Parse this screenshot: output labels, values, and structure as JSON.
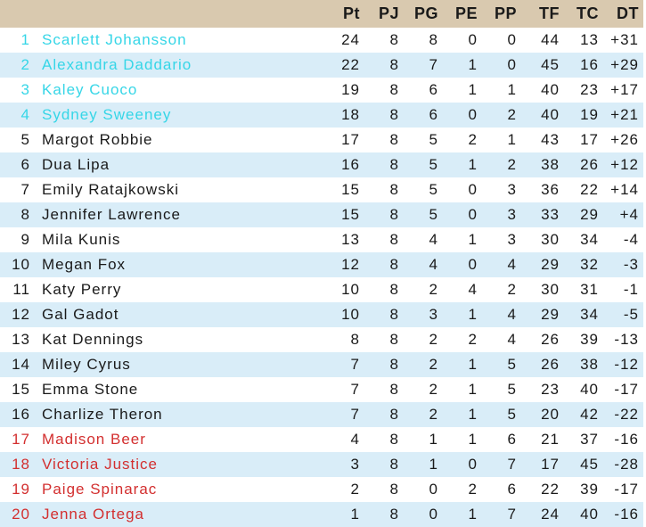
{
  "table": {
    "columns": [
      "Pt",
      "PJ",
      "PG",
      "PE",
      "PP",
      "TF",
      "TC",
      "DT"
    ],
    "rows": [
      {
        "rank": "1",
        "name": "Scarlett Johansson",
        "stats": [
          "24",
          "8",
          "8",
          "0",
          "0",
          "44",
          "13",
          "+31"
        ],
        "zone": "top"
      },
      {
        "rank": "2",
        "name": "Alexandra Daddario",
        "stats": [
          "22",
          "8",
          "7",
          "1",
          "0",
          "45",
          "16",
          "+29"
        ],
        "zone": "top"
      },
      {
        "rank": "3",
        "name": "Kaley Cuoco",
        "stats": [
          "19",
          "8",
          "6",
          "1",
          "1",
          "40",
          "23",
          "+17"
        ],
        "zone": "top"
      },
      {
        "rank": "4",
        "name": "Sydney Sweeney",
        "stats": [
          "18",
          "8",
          "6",
          "0",
          "2",
          "40",
          "19",
          "+21"
        ],
        "zone": "top"
      },
      {
        "rank": "5",
        "name": "Margot Robbie",
        "stats": [
          "17",
          "8",
          "5",
          "2",
          "1",
          "43",
          "17",
          "+26"
        ],
        "zone": "mid"
      },
      {
        "rank": "6",
        "name": "Dua Lipa",
        "stats": [
          "16",
          "8",
          "5",
          "1",
          "2",
          "38",
          "26",
          "+12"
        ],
        "zone": "mid"
      },
      {
        "rank": "7",
        "name": "Emily Ratajkowski",
        "stats": [
          "15",
          "8",
          "5",
          "0",
          "3",
          "36",
          "22",
          "+14"
        ],
        "zone": "mid"
      },
      {
        "rank": "8",
        "name": "Jennifer Lawrence",
        "stats": [
          "15",
          "8",
          "5",
          "0",
          "3",
          "33",
          "29",
          "+4"
        ],
        "zone": "mid"
      },
      {
        "rank": "9",
        "name": "Mila Kunis",
        "stats": [
          "13",
          "8",
          "4",
          "1",
          "3",
          "30",
          "34",
          "-4"
        ],
        "zone": "mid"
      },
      {
        "rank": "10",
        "name": "Megan Fox",
        "stats": [
          "12",
          "8",
          "4",
          "0",
          "4",
          "29",
          "32",
          "-3"
        ],
        "zone": "mid"
      },
      {
        "rank": "11",
        "name": "Katy Perry",
        "stats": [
          "10",
          "8",
          "2",
          "4",
          "2",
          "30",
          "31",
          "-1"
        ],
        "zone": "mid"
      },
      {
        "rank": "12",
        "name": "Gal Gadot",
        "stats": [
          "10",
          "8",
          "3",
          "1",
          "4",
          "29",
          "34",
          "-5"
        ],
        "zone": "mid"
      },
      {
        "rank": "13",
        "name": "Kat Dennings",
        "stats": [
          "8",
          "8",
          "2",
          "2",
          "4",
          "26",
          "39",
          "-13"
        ],
        "zone": "mid"
      },
      {
        "rank": "14",
        "name": "Miley Cyrus",
        "stats": [
          "7",
          "8",
          "2",
          "1",
          "5",
          "26",
          "38",
          "-12"
        ],
        "zone": "mid"
      },
      {
        "rank": "15",
        "name": "Emma Stone",
        "stats": [
          "7",
          "8",
          "2",
          "1",
          "5",
          "23",
          "40",
          "-17"
        ],
        "zone": "mid"
      },
      {
        "rank": "16",
        "name": "Charlize Theron",
        "stats": [
          "7",
          "8",
          "2",
          "1",
          "5",
          "20",
          "42",
          "-22"
        ],
        "zone": "mid"
      },
      {
        "rank": "17",
        "name": "Madison Beer",
        "stats": [
          "4",
          "8",
          "1",
          "1",
          "6",
          "21",
          "37",
          "-16"
        ],
        "zone": "bottom"
      },
      {
        "rank": "18",
        "name": "Victoria Justice",
        "stats": [
          "3",
          "8",
          "1",
          "0",
          "7",
          "17",
          "45",
          "-28"
        ],
        "zone": "bottom"
      },
      {
        "rank": "19",
        "name": "Paige Spinarac",
        "stats": [
          "2",
          "8",
          "0",
          "2",
          "6",
          "22",
          "39",
          "-17"
        ],
        "zone": "bottom"
      },
      {
        "rank": "20",
        "name": "Jenna Ortega",
        "stats": [
          "1",
          "8",
          "0",
          "1",
          "7",
          "24",
          "40",
          "-16"
        ],
        "zone": "bottom"
      }
    ]
  },
  "colors": {
    "header_background": "#d9c9af",
    "row_alt_background": "#d9edf8",
    "promotion_text": "#36d6e7",
    "relegation_text": "#d32f2f",
    "default_text": "#1a1a1a"
  }
}
